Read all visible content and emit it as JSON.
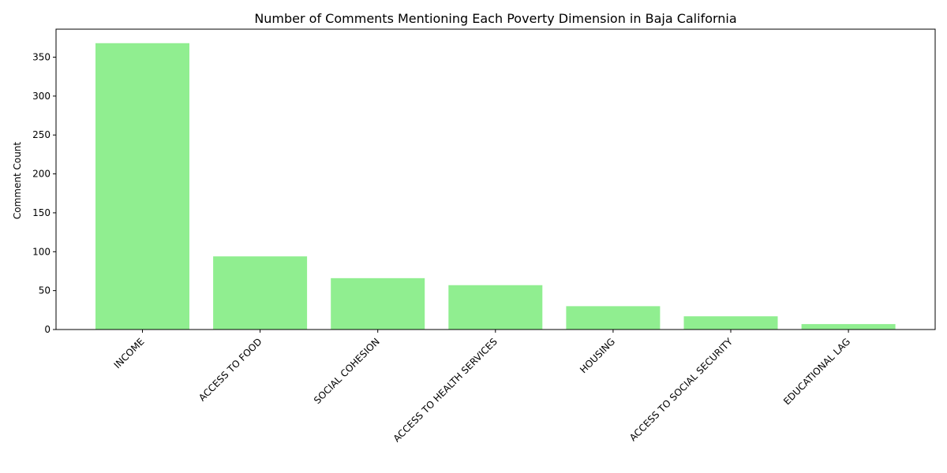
{
  "chart_data": {
    "type": "bar",
    "title": "Number of Comments Mentioning Each Poverty Dimension in Baja California",
    "xlabel": "",
    "ylabel": "Comment Count",
    "categories": [
      "INCOME",
      "ACCESS TO FOOD",
      "SOCIAL COHESION",
      "ACCESS TO HEALTH SERVICES",
      "HOUSING",
      "ACCESS TO SOCIAL SECURITY",
      "EDUCATIONAL LAG"
    ],
    "values": [
      368,
      94,
      66,
      57,
      30,
      17,
      7
    ],
    "yticks": [
      0,
      50,
      100,
      150,
      200,
      250,
      300,
      350
    ],
    "ylim": [
      0,
      386
    ],
    "grid": false,
    "bar_color": "#90ee90"
  }
}
